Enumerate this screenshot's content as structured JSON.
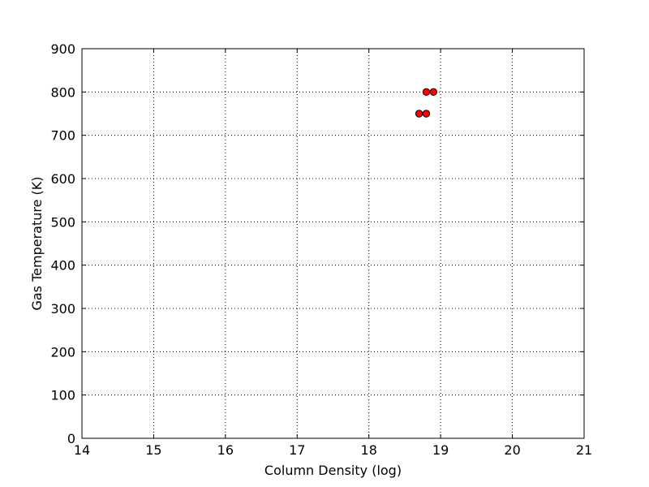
{
  "chart_data": {
    "type": "scatter",
    "title": "",
    "xlabel": "Column Density (log)",
    "ylabel": "Gas Temperature (K)",
    "xlim": [
      14,
      21
    ],
    "ylim": [
      0,
      900
    ],
    "xticks": [
      "14",
      "15",
      "16",
      "17",
      "18",
      "19",
      "20",
      "21"
    ],
    "yticks": [
      "0",
      "100",
      "200",
      "300",
      "400",
      "500",
      "600",
      "700",
      "800",
      "900"
    ],
    "grid": true,
    "grid_style": "dotted",
    "legend": "none",
    "series": [
      {
        "marker": "circle",
        "color": "#ff0000",
        "edge_color": "#000000",
        "points": [
          {
            "x": 18.7,
            "y": 750
          },
          {
            "x": 18.8,
            "y": 750
          },
          {
            "x": 18.8,
            "y": 800
          },
          {
            "x": 18.9,
            "y": 800
          }
        ]
      }
    ]
  }
}
